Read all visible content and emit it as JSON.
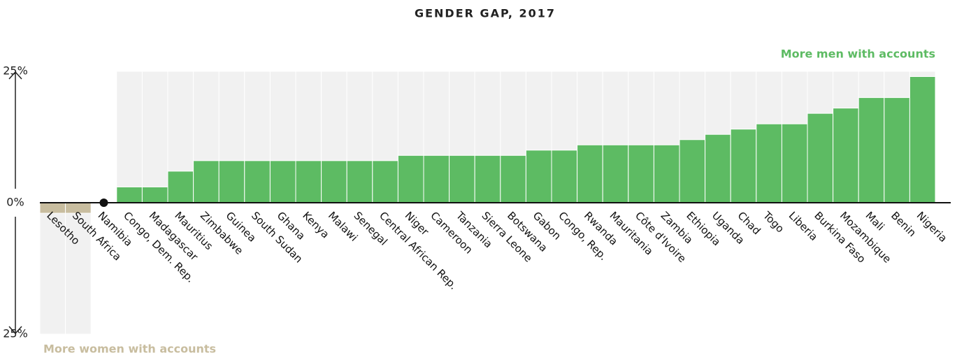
{
  "chart_data": {
    "type": "bar",
    "title": "GENDER GAP, 2017",
    "annotations": [
      "More men with accounts",
      "More women with accounts"
    ],
    "categories": [
      "Lesotho",
      "South Africa",
      "Namibia",
      "Congo, Dem. Rep.",
      "Madagascar",
      "Mauritius",
      "Zimbabwe",
      "Guinea",
      "South Sudan",
      "Ghana",
      "Kenya",
      "Malawi",
      "Senegal",
      "Central African Rep.",
      "Niger",
      "Cameroon",
      "Tanzania",
      "Sierra Leone",
      "Botswana",
      "Gabon",
      "Congo, Rep.",
      "Rwanda",
      "Mauritania",
      "Côte d'Ivoire",
      "Zambia",
      "Ethiopia",
      "Uganda",
      "Chad",
      "Togo",
      "Liberia",
      "Burkina Faso",
      "Mozambique",
      "Mali",
      "Benin",
      "Nigeria"
    ],
    "values": [
      -2,
      -2,
      0,
      3,
      3,
      6,
      8,
      8,
      8,
      8,
      8,
      8,
      8,
      8,
      9,
      9,
      9,
      9,
      9,
      10,
      10,
      11,
      11,
      11,
      11,
      12,
      13,
      14,
      15,
      15,
      17,
      18,
      20,
      20,
      24
    ],
    "color": "#5dbb63",
    "negative_color": "#c8bd9f",
    "ylim": [
      -25,
      25
    ],
    "yticks": [
      {
        "value": 25,
        "label": "25%"
      },
      {
        "value": 0,
        "label": "0%"
      },
      {
        "value": -25,
        "label": "25%"
      }
    ]
  }
}
